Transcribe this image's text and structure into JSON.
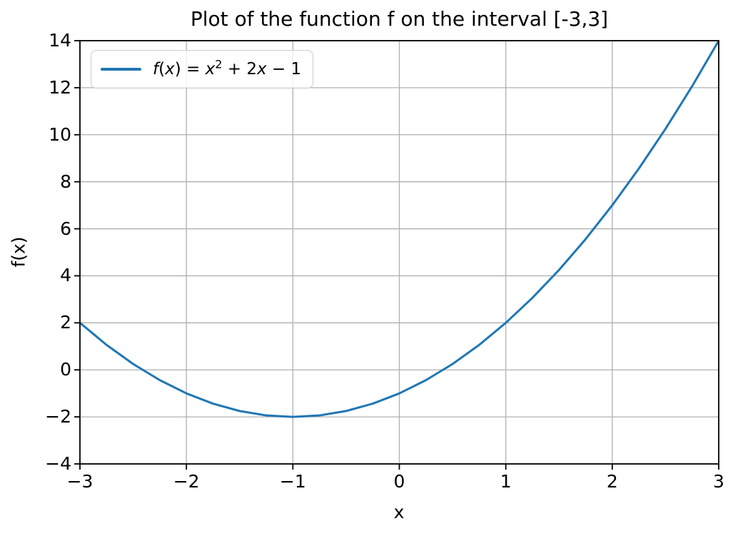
{
  "chart_data": {
    "type": "line",
    "title": "Plot of the function f on the interval [-3,3]",
    "xlabel": "x",
    "ylabel": "f(x)",
    "xlim": [
      -3,
      3
    ],
    "ylim": [
      -4,
      14
    ],
    "xticks": [
      -3,
      -2,
      -1,
      0,
      1,
      2,
      3
    ],
    "yticks": [
      -4,
      -2,
      0,
      2,
      4,
      6,
      8,
      10,
      12,
      14
    ],
    "grid": true,
    "legend_position": "upper left",
    "series": [
      {
        "name": "f(x) = x^2 + 2x - 1",
        "color": "#1f77b4",
        "x": [
          -3,
          -2.75,
          -2.5,
          -2.25,
          -2,
          -1.75,
          -1.5,
          -1.25,
          -1,
          -0.75,
          -0.5,
          -0.25,
          0,
          0.25,
          0.5,
          0.75,
          1,
          1.25,
          1.5,
          1.75,
          2,
          2.25,
          2.5,
          2.75,
          3
        ],
        "y": [
          2,
          1.0625,
          0.25,
          -0.4375,
          -1,
          -1.4375,
          -1.75,
          -1.9375,
          -2,
          -1.9375,
          -1.75,
          -1.4375,
          -1,
          -0.4375,
          0.25,
          1.0625,
          2,
          3.0625,
          4.25,
          5.5625,
          7,
          8.5625,
          10.25,
          12.0625,
          14
        ]
      }
    ],
    "legend_tokens": [
      {
        "text": "f",
        "italic": true
      },
      {
        "text": "("
      },
      {
        "text": "x",
        "italic": true
      },
      {
        "text": ") = "
      },
      {
        "text": "x",
        "italic": true
      },
      {
        "text": "2",
        "sup": true
      },
      {
        "text": " + 2"
      },
      {
        "text": "x",
        "italic": true
      },
      {
        "text": " − 1"
      }
    ]
  },
  "colors": {
    "line": "#1f77b4",
    "grid": "#b0b0b0",
    "spine": "#000000",
    "tick": "#000000",
    "legend_border": "#cccccc",
    "background": "#ffffff"
  }
}
